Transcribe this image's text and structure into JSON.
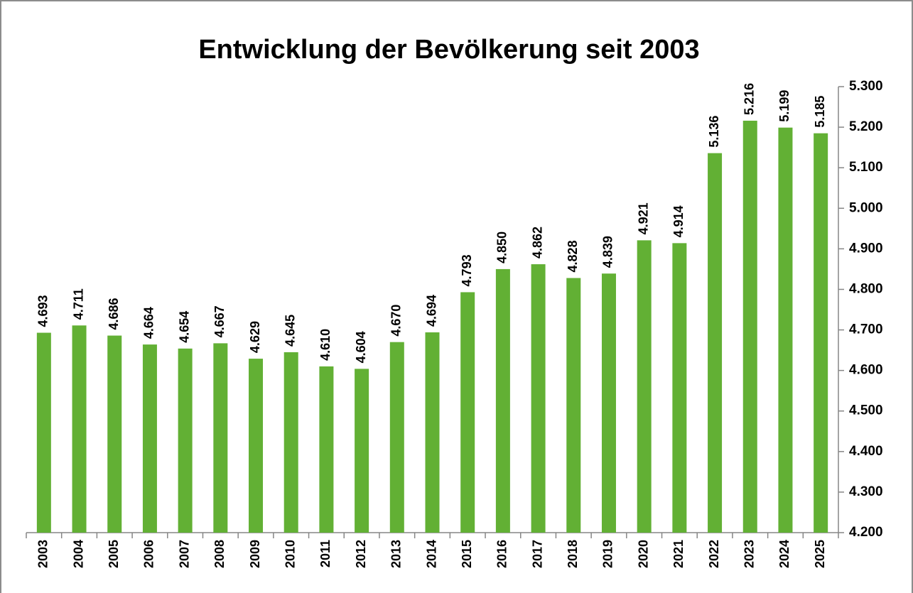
{
  "chart_data": {
    "type": "bar",
    "title": "Entwicklung der Bevölkerung seit 2003",
    "categories": [
      "2003",
      "2004",
      "2005",
      "2006",
      "2007",
      "2008",
      "2009",
      "2010",
      "2011",
      "2012",
      "2013",
      "2014",
      "2015",
      "2016",
      "2017",
      "2018",
      "2019",
      "2020",
      "2021",
      "2022",
      "2023",
      "2024",
      "2025"
    ],
    "values": [
      4693,
      4711,
      4686,
      4664,
      4654,
      4667,
      4629,
      4645,
      4610,
      4604,
      4670,
      4694,
      4793,
      4850,
      4862,
      4828,
      4839,
      4921,
      4914,
      5136,
      5216,
      5199,
      5185
    ],
    "value_labels": [
      "4.693",
      "4.711",
      "4.686",
      "4.664",
      "4.654",
      "4.667",
      "4.629",
      "4.645",
      "4.610",
      "4.604",
      "4.670",
      "4.694",
      "4.793",
      "4.850",
      "4.862",
      "4.828",
      "4.839",
      "4.921",
      "4.914",
      "5.136",
      "5.216",
      "5.199",
      "5.185"
    ],
    "color": "#62b034",
    "ylim": [
      4200,
      5300
    ],
    "yticks": [
      {
        "value": 4200,
        "label": "4.200"
      },
      {
        "value": 4300,
        "label": "4.300"
      },
      {
        "value": 4400,
        "label": "4.400"
      },
      {
        "value": 4500,
        "label": "4.500"
      },
      {
        "value": 4600,
        "label": "4.600"
      },
      {
        "value": 4700,
        "label": "4.700"
      },
      {
        "value": 4800,
        "label": "4.800"
      },
      {
        "value": 4900,
        "label": "4.900"
      },
      {
        "value": 5000,
        "label": "5.000"
      },
      {
        "value": 5100,
        "label": "5.100"
      },
      {
        "value": 5200,
        "label": "5.200"
      },
      {
        "value": 5300,
        "label": "5.300"
      }
    ],
    "y_axis_side": "right",
    "grid": false
  }
}
